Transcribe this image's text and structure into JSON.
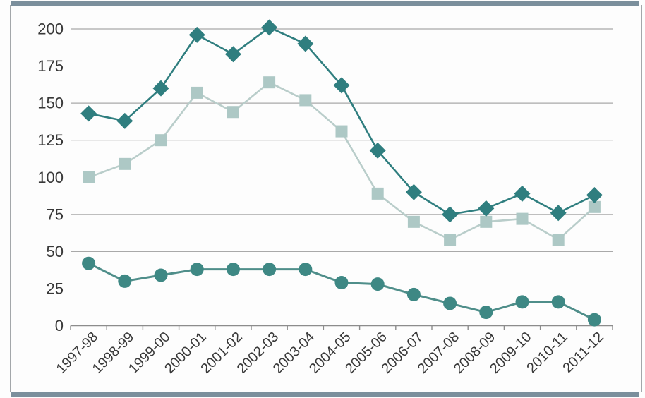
{
  "frame": {
    "top_bottom_bar_color": "#7b8f9c",
    "side_line_color": "#a3a7aa",
    "background": "#fdfdfd"
  },
  "chart_data": {
    "type": "line",
    "title": "",
    "xlabel": "",
    "ylabel": "",
    "legend": "none",
    "grid": "partial-horizontal",
    "categories": [
      "1997-98",
      "1998-99",
      "1999-00",
      "2000-01",
      "2001-02",
      "2002-03",
      "2003-04",
      "2004-05",
      "2005-06",
      "2006-07",
      "2007-08",
      "2008-09",
      "2009-10",
      "2010-11",
      "2011-12"
    ],
    "series": [
      {
        "name": "pale-squares-series",
        "marker": "square",
        "marker_fill": "#adc8c5",
        "line_color": "#b9cdca",
        "values": [
          100,
          109,
          125,
          157,
          144,
          164,
          152,
          131,
          89,
          70,
          58,
          70,
          72,
          58,
          80
        ]
      },
      {
        "name": "teal-circles-series",
        "marker": "circle",
        "marker_fill": "#3e8884",
        "line_color": "#4f8e8a",
        "values": [
          42,
          30,
          34,
          38,
          38,
          38,
          38,
          29,
          28,
          21,
          15,
          9,
          16,
          16,
          4
        ]
      },
      {
        "name": "dark-diamonds-series",
        "marker": "diamond",
        "marker_fill": "#2f7e7f",
        "line_color": "#2f7e7f",
        "values": [
          143,
          138,
          160,
          196,
          183,
          201,
          190,
          162,
          118,
          90,
          75,
          79,
          89,
          76,
          88
        ]
      }
    ],
    "ylim": [
      0,
      200
    ],
    "ytick_step": 25,
    "y_ticks": [
      0,
      25,
      50,
      75,
      100,
      125,
      150,
      175,
      200
    ],
    "gridline_values": [
      200,
      150,
      125,
      75,
      50
    ],
    "grid_color": "#a9a9a9",
    "axis_color": "#8c8c8c",
    "label_color": "#383838"
  }
}
